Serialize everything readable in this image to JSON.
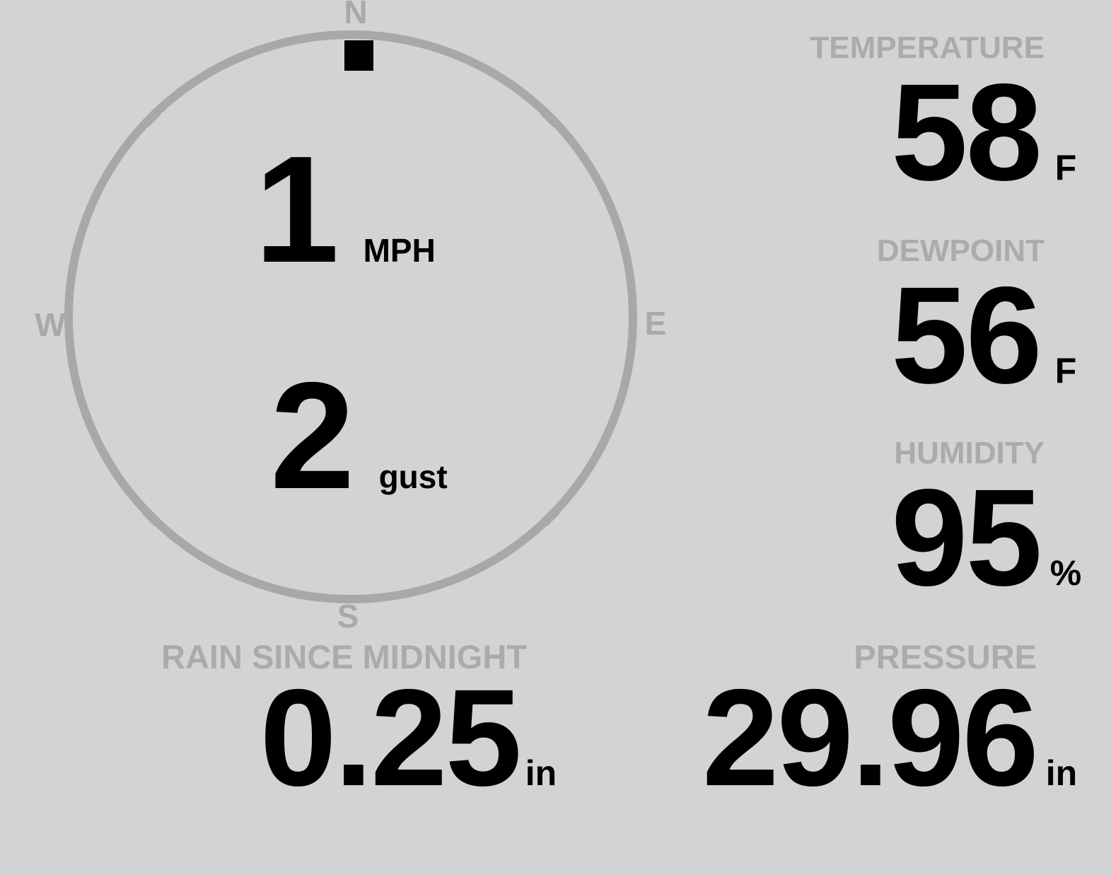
{
  "display": {
    "background_color": "#d3d3d3",
    "muted_color": "#ababab",
    "circle_color": "#a8a8a8",
    "value_color": "#000000"
  },
  "compass": {
    "north_label": "N",
    "east_label": "E",
    "south_label": "S",
    "west_label": "W",
    "wind_direction_deg": 0,
    "speed": {
      "value": "1",
      "unit": "MPH"
    },
    "gust": {
      "value": "2",
      "unit": "gust"
    }
  },
  "stats": {
    "temperature": {
      "label": "TEMPERATURE",
      "value": "58",
      "unit": "F"
    },
    "dewpoint": {
      "label": "DEWPOINT",
      "value": "56",
      "unit": "F"
    },
    "humidity": {
      "label": "HUMIDITY",
      "value": "95",
      "unit": "%"
    },
    "rain_since_midnight": {
      "label": "RAIN SINCE MIDNIGHT",
      "value": "0.25",
      "unit": "in"
    },
    "pressure": {
      "label": "PRESSURE",
      "value": "29.96",
      "unit": "in"
    }
  }
}
